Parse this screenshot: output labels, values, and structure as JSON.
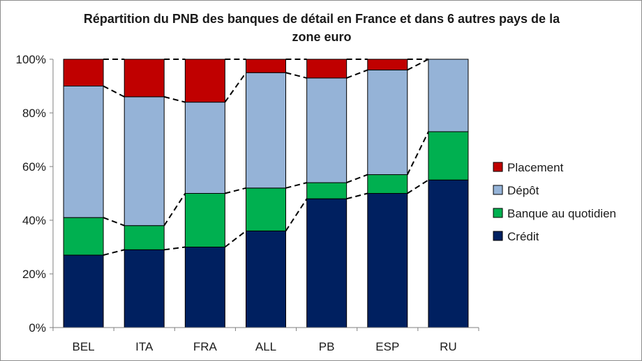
{
  "chart_data": {
    "type": "bar",
    "stacked": true,
    "title": "Répartition du PNB des banques de détail en France et dans 6 autres pays de la zone euro",
    "categories": [
      "BEL",
      "ITA",
      "FRA",
      "ALL",
      "PB",
      "ESP",
      "RU"
    ],
    "y_ticks": [
      "0%",
      "20%",
      "40%",
      "60%",
      "80%",
      "100%"
    ],
    "ylim": [
      0,
      100
    ],
    "y_unit": "%",
    "grid": false,
    "connector_lines": "dashed",
    "legend_position": "right",
    "series": [
      {
        "name": "Crédit",
        "color": "#002060",
        "values": [
          27,
          29,
          30,
          36,
          48,
          50,
          55
        ]
      },
      {
        "name": "Banque au quotidien",
        "color": "#00B050",
        "values": [
          14,
          9,
          20,
          16,
          6,
          7,
          18
        ]
      },
      {
        "name": "Dépôt",
        "color": "#95B3D7",
        "values": [
          49,
          48,
          34,
          43,
          39,
          39,
          27
        ]
      },
      {
        "name": "Placement",
        "color": "#C00000",
        "values": [
          10,
          14,
          16,
          5,
          7,
          4,
          0
        ]
      }
    ],
    "legend_order": [
      "Placement",
      "Dépôt",
      "Banque au quotidien",
      "Crédit"
    ]
  }
}
